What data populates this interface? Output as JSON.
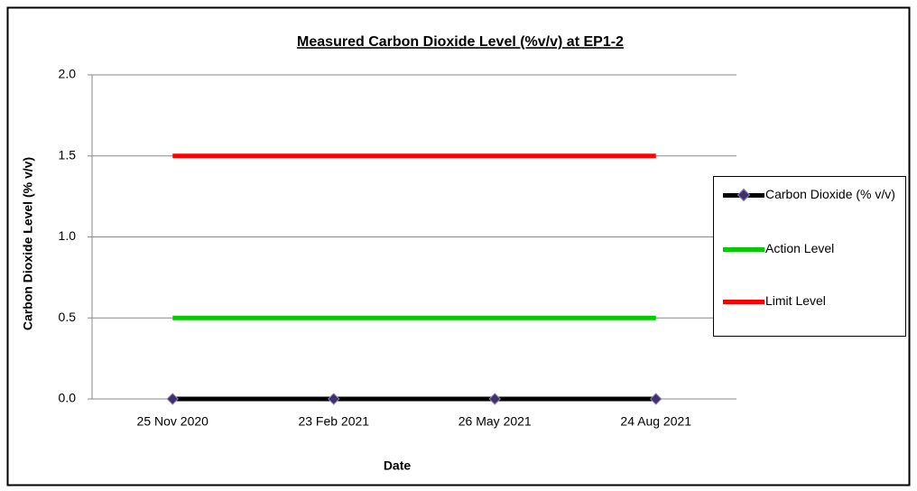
{
  "chart_data": {
    "type": "line",
    "title": "Measured Carbon Dioxide Level (%v/v) at EP1-2",
    "y_label": "Carbon Dioxide Level (% v/v)",
    "x_label": "Date",
    "categories": [
      "25 Nov 2020",
      "23 Feb 2021",
      "26 May 2021",
      "24 Aug 2021"
    ],
    "series": [
      {
        "name": "Carbon Dioxide (% v/v)",
        "color": "#000000",
        "marker_color": "#3f2f6b",
        "values": [
          0,
          0,
          0,
          0
        ]
      },
      {
        "name": "Action Level",
        "color": "#00cc00",
        "values": [
          0.5,
          0.5,
          0.5,
          0.5
        ]
      },
      {
        "name": "Limit Level",
        "color": "#ff0000",
        "values": [
          1.5,
          1.5,
          1.5,
          1.5
        ]
      }
    ],
    "ylim": [
      0,
      2
    ],
    "yticks": [
      {
        "value": 0,
        "label": "0.0"
      },
      0.5,
      {
        "value": 1,
        "label": "1.0"
      },
      1.5,
      {
        "value": 2,
        "label": "2.0"
      }
    ],
    "grid": true,
    "legend": "right"
  }
}
